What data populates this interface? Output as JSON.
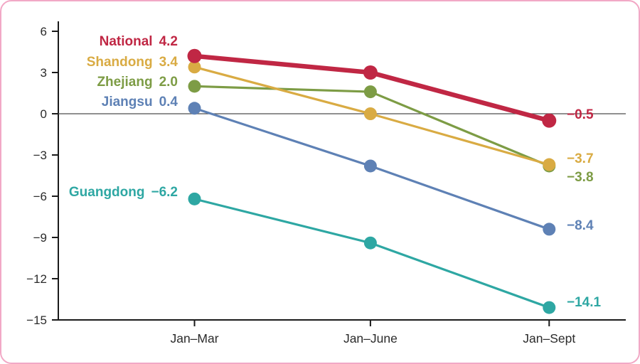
{
  "chart_data": {
    "type": "line",
    "title": "",
    "xlabel": "",
    "ylabel": "",
    "categories": [
      "Jan–Mar",
      "Jan–June",
      "Jan–Sept"
    ],
    "ylim": [
      -15,
      6
    ],
    "yticks": [
      {
        "v": 6,
        "label": "6"
      },
      {
        "v": 3,
        "label": "3"
      },
      {
        "v": 0,
        "label": "0"
      },
      {
        "v": -3,
        "label": "−3"
      },
      {
        "v": -6,
        "label": "−6"
      },
      {
        "v": -9,
        "label": "−9"
      },
      {
        "v": -12,
        "label": "−12"
      },
      {
        "v": -15,
        "label": "−15"
      }
    ],
    "zero_line": true,
    "grid": false,
    "legend_position": "inline-labels",
    "series": [
      {
        "name": "National",
        "color": "#c02744",
        "values": [
          4.2,
          3.0,
          -0.5
        ],
        "start_label": "4.2",
        "end_label": "−0.5",
        "emphasis": true
      },
      {
        "name": "Shandong",
        "color": "#d9ab43",
        "values": [
          3.4,
          0.0,
          -3.7
        ],
        "start_label": "3.4",
        "end_label": "−3.7",
        "emphasis": false
      },
      {
        "name": "Zhejiang",
        "color": "#7d9c45",
        "values": [
          2.0,
          1.6,
          -3.8
        ],
        "start_label": "2.0",
        "end_label": "−3.8",
        "emphasis": false
      },
      {
        "name": "Jiangsu",
        "color": "#5e81b5",
        "values": [
          0.4,
          -3.8,
          -8.4
        ],
        "start_label": "0.4",
        "end_label": "−8.4",
        "emphasis": false
      },
      {
        "name": "Guangdong",
        "color": "#2ea7a3",
        "values": [
          -6.2,
          -9.4,
          -14.1
        ],
        "start_label": "−6.2",
        "end_label": "−14.1",
        "emphasis": false
      }
    ],
    "frame_color": "#f2a9c6",
    "axis_color": "#1a1a1a",
    "zero_line_color": "#4d4d4d",
    "tick_label_color": "#2b2b2b"
  }
}
